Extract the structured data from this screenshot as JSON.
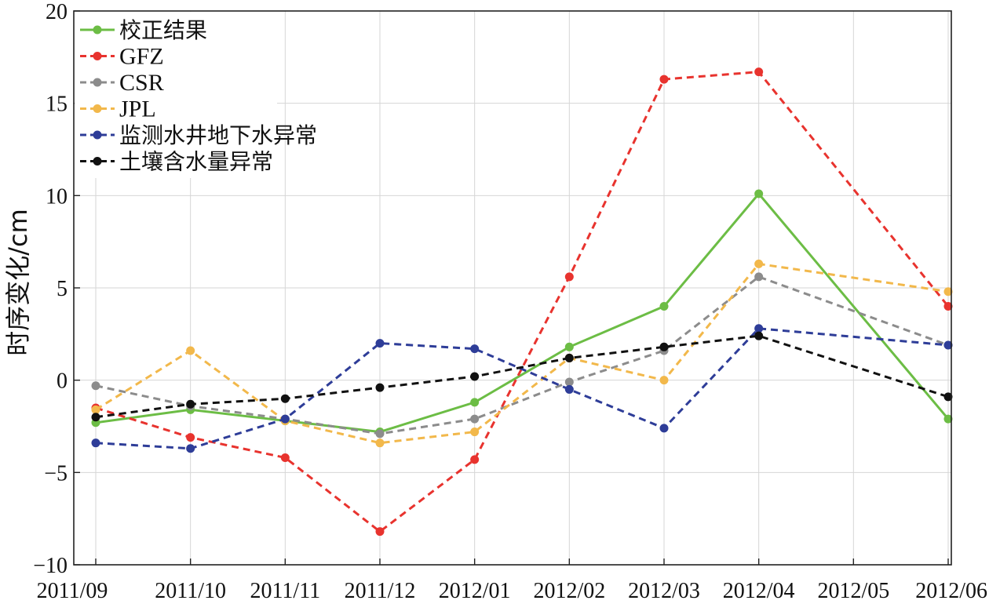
{
  "chart_data": {
    "type": "line",
    "title": "",
    "xlabel": "",
    "ylabel": "时序变化/cm",
    "categories": [
      "2011/09",
      "2011/10",
      "2011/11",
      "2011/12",
      "2012/01",
      "2012/02",
      "2012/03",
      "2012/04",
      "2012/05",
      "2012/06"
    ],
    "ylim": [
      -10,
      20
    ],
    "yticks": [
      -10,
      -5,
      0,
      5,
      10,
      15,
      20
    ],
    "ytick_labels": [
      "−10",
      "−5",
      "0",
      "5",
      "10",
      "15",
      "20"
    ],
    "grid": true,
    "legend_position": "top-left",
    "series": [
      {
        "name": "校正结果",
        "color": "#6cbd45",
        "dashed": false,
        "values": [
          -2.3,
          -1.6,
          -2.2,
          -2.8,
          -1.2,
          1.8,
          4.0,
          10.1,
          null,
          -2.1
        ]
      },
      {
        "name": "GFZ",
        "color": "#e8332e",
        "dashed": true,
        "values": [
          -1.5,
          -3.1,
          -4.2,
          -8.2,
          -4.3,
          5.6,
          16.3,
          16.7,
          null,
          4.0
        ]
      },
      {
        "name": "CSR",
        "color": "#8c8c8c",
        "dashed": true,
        "values": [
          -0.3,
          -1.4,
          -2.1,
          -2.9,
          -2.1,
          -0.1,
          1.6,
          5.6,
          null,
          1.9
        ]
      },
      {
        "name": "JPL",
        "color": "#f2b84b",
        "dashed": true,
        "values": [
          -1.6,
          1.6,
          -2.2,
          -3.4,
          -2.8,
          1.2,
          0.0,
          6.3,
          null,
          4.8
        ]
      },
      {
        "name": "监测水井地下水异常",
        "color": "#2e3d98",
        "dashed": true,
        "values": [
          -3.4,
          -3.7,
          -2.1,
          2.0,
          1.7,
          -0.5,
          -2.6,
          2.8,
          null,
          1.9
        ]
      },
      {
        "name": "土壤含水量异常",
        "color": "#111111",
        "dashed": true,
        "values": [
          -2.0,
          -1.3,
          -1.0,
          -0.4,
          0.2,
          1.2,
          1.8,
          2.4,
          null,
          -0.9
        ]
      }
    ]
  }
}
